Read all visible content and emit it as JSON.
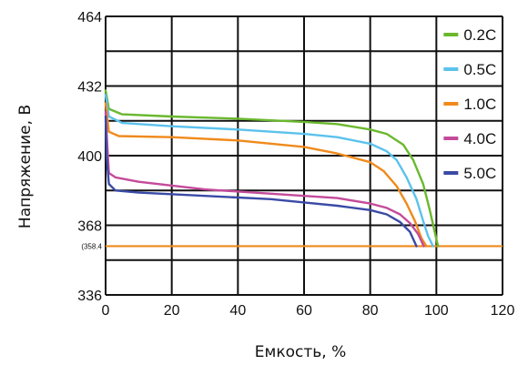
{
  "chart_data": {
    "type": "line",
    "xlabel": "Емкость, %",
    "ylabel": "Напряжение, В",
    "xlim": [
      0,
      120
    ],
    "ylim": [
      336,
      464
    ],
    "x_ticks": [
      "0",
      "20",
      "40",
      "60",
      "80",
      "100",
      "120"
    ],
    "y_ticks": [
      "336",
      "368",
      "400",
      "432",
      "464"
    ],
    "cutoff": {
      "value": 358.4,
      "label": "(358.4"
    },
    "grid": true,
    "legend_position": "right",
    "series": [
      {
        "name": "0.2C",
        "color": "#6ab82e",
        "points": [
          [
            0,
            430
          ],
          [
            1,
            421.5
          ],
          [
            5,
            419
          ],
          [
            20,
            418
          ],
          [
            40,
            417
          ],
          [
            60,
            415.5
          ],
          [
            70,
            414.5
          ],
          [
            80,
            412
          ],
          [
            85,
            410
          ],
          [
            90,
            405
          ],
          [
            93,
            398
          ],
          [
            96,
            387
          ],
          [
            98,
            375
          ],
          [
            99.5,
            365
          ],
          [
            100.5,
            358.4
          ]
        ]
      },
      {
        "name": "0.5C",
        "color": "#5bc2ec",
        "points": [
          [
            0,
            428
          ],
          [
            1,
            418
          ],
          [
            5,
            415
          ],
          [
            20,
            413.5
          ],
          [
            40,
            412
          ],
          [
            60,
            410
          ],
          [
            70,
            408.5
          ],
          [
            80,
            405.5
          ],
          [
            85,
            402
          ],
          [
            88,
            398
          ],
          [
            91,
            390
          ],
          [
            94,
            380
          ],
          [
            96,
            370
          ],
          [
            97.5,
            363
          ],
          [
            99,
            358.4
          ]
        ]
      },
      {
        "name": "1.0C",
        "color": "#f08a1c",
        "points": [
          [
            0,
            424
          ],
          [
            1,
            411
          ],
          [
            4,
            409
          ],
          [
            20,
            408.5
          ],
          [
            40,
            407
          ],
          [
            60,
            404
          ],
          [
            70,
            401
          ],
          [
            80,
            397
          ],
          [
            84,
            393
          ],
          [
            88,
            386
          ],
          [
            91,
            378
          ],
          [
            93.5,
            370
          ],
          [
            95.5,
            362
          ],
          [
            97,
            358.4
          ]
        ]
      },
      {
        "name": "4.0C",
        "color": "#c44a9a",
        "points": [
          [
            0,
            420
          ],
          [
            0.5,
            405
          ],
          [
            1,
            392
          ],
          [
            3,
            390
          ],
          [
            10,
            388
          ],
          [
            30,
            384.5
          ],
          [
            50,
            382.5
          ],
          [
            70,
            380.5
          ],
          [
            80,
            378
          ],
          [
            85,
            376
          ],
          [
            89,
            373
          ],
          [
            92,
            369
          ],
          [
            94.5,
            364
          ],
          [
            96.2,
            358.4
          ]
        ]
      },
      {
        "name": "5.0C",
        "color": "#3a4aa6",
        "points": [
          [
            0,
            418
          ],
          [
            0.3,
            400
          ],
          [
            1,
            387
          ],
          [
            3,
            384
          ],
          [
            10,
            383
          ],
          [
            30,
            381.5
          ],
          [
            50,
            380
          ],
          [
            60,
            378.5
          ],
          [
            70,
            377
          ],
          [
            80,
            375
          ],
          [
            85,
            373
          ],
          [
            89,
            369.5
          ],
          [
            92,
            365
          ],
          [
            94,
            358.4
          ]
        ]
      }
    ]
  }
}
